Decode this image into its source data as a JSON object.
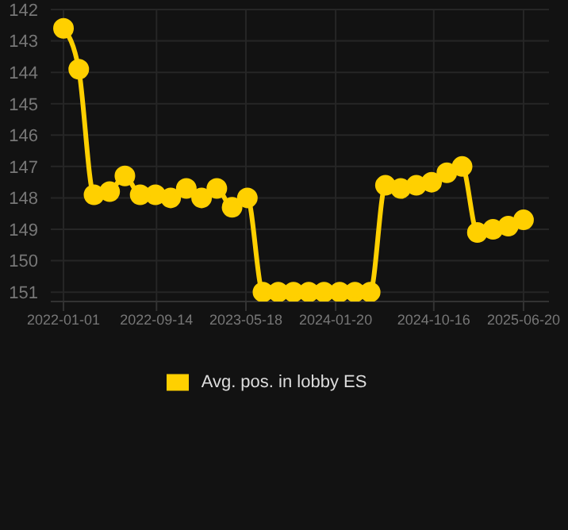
{
  "chart_data": {
    "type": "line",
    "x": [
      "2022-01-01",
      "2022-02-12",
      "2022-03-26",
      "2022-05-08",
      "2022-06-19",
      "2022-07-31",
      "2022-09-11",
      "2022-10-23",
      "2022-12-05",
      "2023-01-16",
      "2023-02-27",
      "2023-04-10",
      "2023-05-22",
      "2023-07-04",
      "2023-08-15",
      "2023-09-26",
      "2023-11-07",
      "2023-12-19",
      "2024-01-31",
      "2024-03-13",
      "2024-04-24",
      "2024-06-05",
      "2024-07-17",
      "2024-08-29",
      "2024-10-10",
      "2024-11-21",
      "2025-01-02",
      "2025-02-13",
      "2025-03-28",
      "2025-05-09",
      "2025-06-20"
    ],
    "series": [
      {
        "name": "Avg. pos. in lobby ES",
        "color": "#ffd000",
        "values": [
          142.6,
          143.9,
          147.9,
          147.8,
          147.3,
          147.9,
          147.9,
          148.0,
          147.7,
          148.0,
          147.7,
          148.3,
          148.0,
          151,
          151,
          151,
          151,
          151,
          151,
          151,
          151,
          147.6,
          147.7,
          147.6,
          147.5,
          147.2,
          147.0,
          149.1,
          149.0,
          148.9,
          148.7
        ]
      }
    ],
    "xlim": [
      "2021-11-27",
      "2025-08-29"
    ],
    "xticks": [
      "2022-01-01",
      "2022-09-14",
      "2023-05-18",
      "2024-01-20",
      "2024-10-16",
      "2025-06-20"
    ],
    "ylim": [
      151.3,
      142
    ],
    "yticks": [
      142,
      143,
      144,
      145,
      146,
      147,
      148,
      149,
      150,
      151
    ],
    "grid": true,
    "legend": "bottom",
    "marker": "circle",
    "line_style": "solid"
  }
}
